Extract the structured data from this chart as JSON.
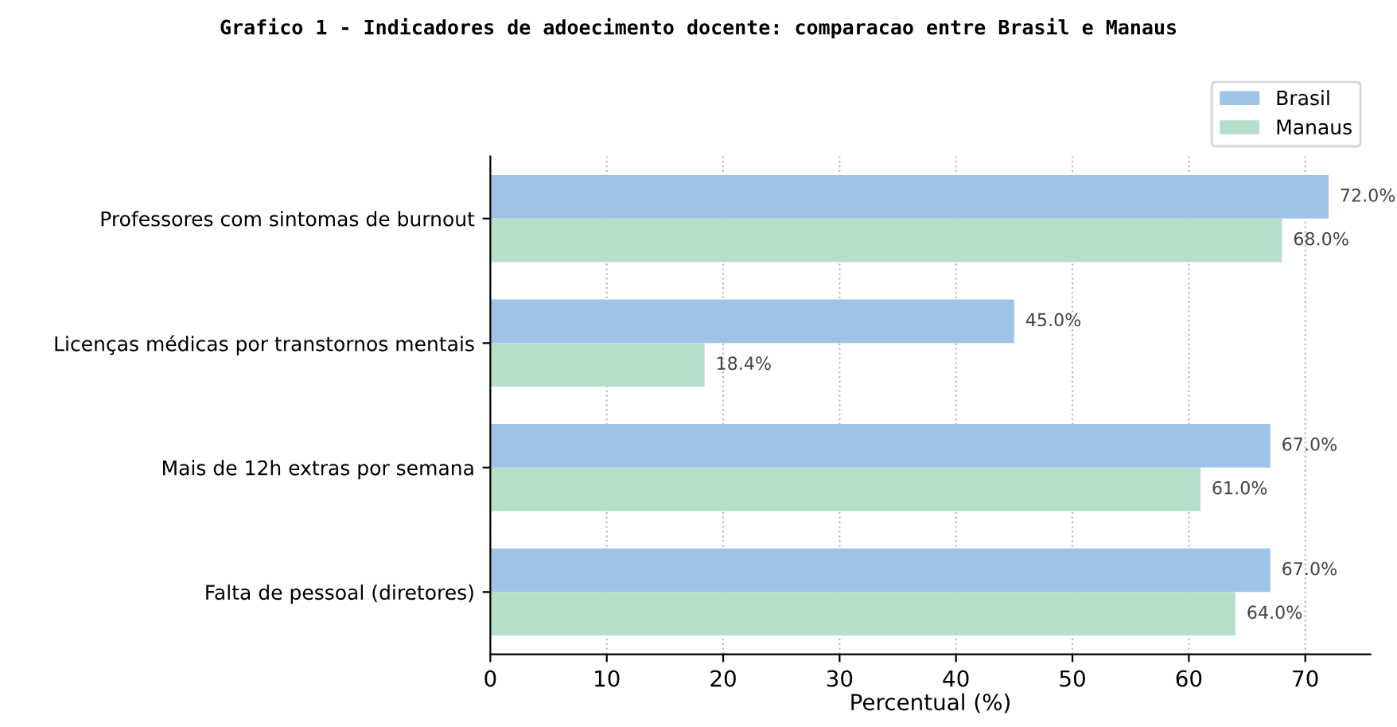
{
  "chart_data": {
    "type": "bar",
    "orientation": "horizontal",
    "title": "Grafico 1 - Indicadores de adoecimento docente: comparacao entre Brasil e Manaus",
    "xlabel": "Percentual (%)",
    "categories": [
      "Professores com sintomas de burnout",
      "Licenças médicas por transtornos mentais",
      "Mais de 12h extras por semana",
      "Falta de pessoal (diretores)"
    ],
    "series": [
      {
        "name": "Brasil",
        "color": "#9fc3e7",
        "values": [
          72.0,
          45.0,
          67.0,
          67.0
        ],
        "value_labels": [
          "72.0%",
          "45.0%",
          "67.0%",
          "67.0%"
        ]
      },
      {
        "name": "Manaus",
        "color": "#b4e0ca",
        "values": [
          68.0,
          18.4,
          61.0,
          64.0
        ],
        "value_labels": [
          "68.0%",
          "18.4%",
          "61.0%",
          "64.0%"
        ]
      }
    ],
    "xlim": [
      0,
      75.6
    ],
    "xticks": [
      0,
      10,
      20,
      30,
      40,
      50,
      60,
      70
    ],
    "grid": "x",
    "legend": "top right"
  }
}
